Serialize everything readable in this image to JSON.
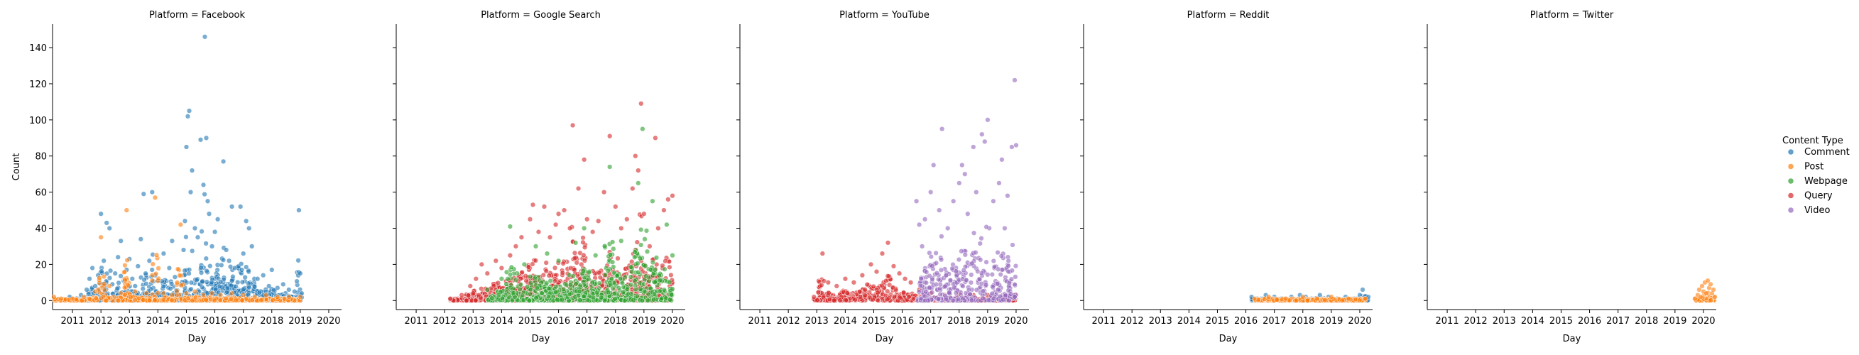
{
  "chart_data": {
    "type": "scatter",
    "facet_variable": "Platform",
    "facets": [
      {
        "title": "Platform = Facebook"
      },
      {
        "title": "Platform = Google Search"
      },
      {
        "title": "Platform = YouTube"
      },
      {
        "title": "Platform = Reddit"
      },
      {
        "title": "Platform = Twitter"
      }
    ],
    "xlabel": "Day",
    "ylabel": "Count",
    "xlim": [
      2010.3,
      2020.45
    ],
    "ylim": [
      -5,
      153
    ],
    "x_ticks": [
      2011,
      2012,
      2013,
      2014,
      2015,
      2016,
      2017,
      2018,
      2019,
      2020
    ],
    "y_ticks": [
      0,
      20,
      40,
      60,
      80,
      100,
      120,
      140
    ],
    "legend": {
      "title": "Content Type",
      "placement": "right",
      "entries": [
        "Comment",
        "Post",
        "Webpage",
        "Query",
        "Video"
      ]
    },
    "colors": {
      "Comment": "#1f77b4",
      "Post": "#ff7f0e",
      "Webpage": "#2ca02c",
      "Query": "#d62728",
      "Video": "#9467bd"
    },
    "series": [
      {
        "facet": "Platform = Facebook",
        "name": "Comment",
        "points": [
          [
            2010.9,
            2
          ],
          [
            2011.3,
            3
          ],
          [
            2011.5,
            6
          ],
          [
            2011.6,
            12
          ],
          [
            2011.7,
            18
          ],
          [
            2011.8,
            8
          ],
          [
            2011.9,
            14
          ],
          [
            2012.0,
            48
          ],
          [
            2012.1,
            22
          ],
          [
            2012.2,
            43
          ],
          [
            2012.3,
            40
          ],
          [
            2012.4,
            9
          ],
          [
            2012.5,
            15
          ],
          [
            2012.6,
            24
          ],
          [
            2012.7,
            33
          ],
          [
            2012.8,
            11
          ],
          [
            2012.9,
            17
          ],
          [
            2013.0,
            23
          ],
          [
            2013.1,
            12
          ],
          [
            2013.2,
            8
          ],
          [
            2013.3,
            19
          ],
          [
            2013.4,
            34
          ],
          [
            2013.5,
            59
          ],
          [
            2013.7,
            22
          ],
          [
            2013.8,
            60
          ],
          [
            2013.9,
            14
          ],
          [
            2014.0,
            11
          ],
          [
            2014.2,
            26
          ],
          [
            2014.4,
            18
          ],
          [
            2014.5,
            33
          ],
          [
            2014.6,
            13
          ],
          [
            2014.8,
            9
          ],
          [
            2014.9,
            28
          ],
          [
            2014.95,
            44
          ],
          [
            2015.0,
            85
          ],
          [
            2015.05,
            102
          ],
          [
            2015.1,
            105
          ],
          [
            2015.15,
            60
          ],
          [
            2015.2,
            72
          ],
          [
            2015.3,
            40
          ],
          [
            2015.4,
            35
          ],
          [
            2015.5,
            89
          ],
          [
            2015.6,
            64
          ],
          [
            2015.65,
            146
          ],
          [
            2015.7,
            90
          ],
          [
            2015.75,
            55
          ],
          [
            2015.8,
            48
          ],
          [
            2015.9,
            30
          ],
          [
            2016.0,
            38
          ],
          [
            2016.1,
            45
          ],
          [
            2016.3,
            77
          ],
          [
            2016.4,
            28
          ],
          [
            2016.5,
            22
          ],
          [
            2016.6,
            52
          ],
          [
            2016.7,
            18
          ],
          [
            2016.9,
            52
          ],
          [
            2017.0,
            26
          ],
          [
            2017.1,
            44
          ],
          [
            2017.2,
            40
          ],
          [
            2017.3,
            30
          ],
          [
            2017.5,
            12
          ],
          [
            2017.7,
            14
          ],
          [
            2017.9,
            8
          ],
          [
            2018.0,
            17
          ],
          [
            2018.2,
            7
          ],
          [
            2018.4,
            9
          ],
          [
            2018.6,
            6
          ],
          [
            2018.8,
            5
          ],
          [
            2018.95,
            50
          ],
          [
            2019.0,
            15
          ],
          [
            2019.05,
            4
          ]
        ]
      },
      {
        "facet": "Platform = Facebook",
        "name": "Post",
        "points": [
          [
            2010.35,
            2
          ],
          [
            2010.6,
            1
          ],
          [
            2011.0,
            1
          ],
          [
            2011.4,
            2
          ],
          [
            2011.8,
            5
          ],
          [
            2012.0,
            35
          ],
          [
            2012.3,
            8
          ],
          [
            2012.7,
            4
          ],
          [
            2012.9,
            50
          ],
          [
            2013.2,
            5
          ],
          [
            2013.6,
            4
          ],
          [
            2013.9,
            57
          ],
          [
            2014.2,
            4
          ],
          [
            2014.5,
            3
          ],
          [
            2014.8,
            42
          ],
          [
            2015.0,
            4
          ],
          [
            2015.3,
            5
          ],
          [
            2015.6,
            3
          ],
          [
            2015.9,
            4
          ],
          [
            2016.2,
            3
          ],
          [
            2016.6,
            4
          ],
          [
            2017.0,
            3
          ],
          [
            2017.4,
            2
          ],
          [
            2017.8,
            3
          ],
          [
            2018.2,
            2
          ],
          [
            2018.6,
            2
          ],
          [
            2019.0,
            2
          ]
        ]
      },
      {
        "facet": "Platform = Google Search",
        "name": "Query",
        "points": [
          [
            2012.2,
            1
          ],
          [
            2012.6,
            3
          ],
          [
            2012.9,
            8
          ],
          [
            2013.1,
            12
          ],
          [
            2013.3,
            20
          ],
          [
            2013.5,
            15
          ],
          [
            2013.8,
            22
          ],
          [
            2014.0,
            18
          ],
          [
            2014.3,
            25
          ],
          [
            2014.5,
            30
          ],
          [
            2014.7,
            35
          ],
          [
            2015.0,
            45
          ],
          [
            2015.1,
            53
          ],
          [
            2015.3,
            38
          ],
          [
            2015.5,
            52
          ],
          [
            2015.7,
            35
          ],
          [
            2015.9,
            42
          ],
          [
            2016.0,
            48
          ],
          [
            2016.2,
            50
          ],
          [
            2016.4,
            40
          ],
          [
            2016.5,
            97
          ],
          [
            2016.7,
            62
          ],
          [
            2016.9,
            78
          ],
          [
            2017.0,
            45
          ],
          [
            2017.2,
            38
          ],
          [
            2017.4,
            44
          ],
          [
            2017.6,
            60
          ],
          [
            2017.8,
            91
          ],
          [
            2018.0,
            52
          ],
          [
            2018.2,
            40
          ],
          [
            2018.4,
            45
          ],
          [
            2018.6,
            62
          ],
          [
            2018.7,
            80
          ],
          [
            2018.8,
            72
          ],
          [
            2018.9,
            109
          ],
          [
            2019.0,
            48
          ],
          [
            2019.2,
            30
          ],
          [
            2019.4,
            90
          ],
          [
            2019.5,
            40
          ],
          [
            2019.7,
            50
          ],
          [
            2019.85,
            56
          ],
          [
            2020.0,
            58
          ]
        ]
      },
      {
        "facet": "Platform = Google Search",
        "name": "Webpage",
        "points": [
          [
            2013.5,
            6
          ],
          [
            2014.0,
            12
          ],
          [
            2014.3,
            41
          ],
          [
            2014.8,
            20
          ],
          [
            2015.2,
            30
          ],
          [
            2015.6,
            26
          ],
          [
            2016.0,
            22
          ],
          [
            2016.6,
            32
          ],
          [
            2016.9,
            40
          ],
          [
            2017.3,
            25
          ],
          [
            2017.8,
            74
          ],
          [
            2018.2,
            33
          ],
          [
            2018.8,
            65
          ],
          [
            2018.95,
            95
          ],
          [
            2019.3,
            55
          ],
          [
            2019.8,
            42
          ],
          [
            2020.0,
            25
          ]
        ]
      },
      {
        "facet": "Platform = YouTube",
        "name": "Query",
        "points": [
          [
            2012.9,
            2
          ],
          [
            2013.2,
            26
          ],
          [
            2013.4,
            10
          ],
          [
            2013.7,
            8
          ],
          [
            2014.0,
            12
          ],
          [
            2014.3,
            10
          ],
          [
            2014.6,
            14
          ],
          [
            2014.9,
            20
          ],
          [
            2015.1,
            16
          ],
          [
            2015.3,
            26
          ],
          [
            2015.5,
            32
          ],
          [
            2015.7,
            19
          ],
          [
            2015.9,
            15
          ],
          [
            2016.1,
            12
          ],
          [
            2016.3,
            10
          ],
          [
            2016.6,
            6
          ],
          [
            2017.0,
            4
          ],
          [
            2017.5,
            3
          ],
          [
            2018.0,
            4
          ],
          [
            2018.5,
            3
          ],
          [
            2019.0,
            3
          ],
          [
            2019.5,
            2
          ],
          [
            2020.0,
            3
          ]
        ]
      },
      {
        "facet": "Platform = YouTube",
        "name": "Video",
        "points": [
          [
            2016.5,
            55
          ],
          [
            2016.6,
            42
          ],
          [
            2016.7,
            30
          ],
          [
            2016.8,
            45
          ],
          [
            2017.0,
            60
          ],
          [
            2017.1,
            75
          ],
          [
            2017.3,
            50
          ],
          [
            2017.4,
            95
          ],
          [
            2017.6,
            40
          ],
          [
            2017.8,
            55
          ],
          [
            2018.0,
            65
          ],
          [
            2018.1,
            75
          ],
          [
            2018.2,
            70
          ],
          [
            2018.3,
            48
          ],
          [
            2018.5,
            85
          ],
          [
            2018.6,
            60
          ],
          [
            2018.8,
            92
          ],
          [
            2018.9,
            88
          ],
          [
            2019.0,
            100
          ],
          [
            2019.2,
            55
          ],
          [
            2019.4,
            65
          ],
          [
            2019.5,
            78
          ],
          [
            2019.6,
            40
          ],
          [
            2019.7,
            58
          ],
          [
            2019.85,
            85
          ],
          [
            2019.95,
            122
          ],
          [
            2020.0,
            86
          ]
        ]
      },
      {
        "facet": "Platform = Reddit",
        "name": "Comment",
        "points": [
          [
            2016.2,
            2
          ],
          [
            2016.4,
            1
          ],
          [
            2016.7,
            3
          ],
          [
            2017.0,
            2
          ],
          [
            2017.3,
            1
          ],
          [
            2017.6,
            2
          ],
          [
            2017.9,
            3
          ],
          [
            2018.1,
            2
          ],
          [
            2018.3,
            1
          ],
          [
            2018.6,
            3
          ],
          [
            2018.9,
            2
          ],
          [
            2019.2,
            1
          ],
          [
            2019.5,
            2
          ],
          [
            2019.8,
            1
          ],
          [
            2020.0,
            3
          ],
          [
            2020.1,
            6
          ],
          [
            2020.3,
            2
          ]
        ]
      },
      {
        "facet": "Platform = Reddit",
        "name": "Post",
        "points": [
          [
            2016.3,
            1
          ],
          [
            2016.8,
            2
          ],
          [
            2017.4,
            1
          ],
          [
            2018.0,
            2
          ],
          [
            2018.5,
            1
          ],
          [
            2019.0,
            2
          ],
          [
            2019.6,
            1
          ],
          [
            2020.2,
            1
          ]
        ]
      },
      {
        "facet": "Platform = Twitter",
        "name": "Post",
        "points": [
          [
            2019.7,
            1
          ],
          [
            2019.8,
            3
          ],
          [
            2019.85,
            6
          ],
          [
            2019.9,
            2
          ],
          [
            2019.95,
            8
          ],
          [
            2020.0,
            5
          ],
          [
            2020.05,
            10
          ],
          [
            2020.1,
            4
          ],
          [
            2020.15,
            11
          ],
          [
            2020.2,
            7
          ],
          [
            2020.25,
            9
          ],
          [
            2020.3,
            4
          ],
          [
            2020.35,
            6
          ],
          [
            2020.4,
            2
          ]
        ]
      }
    ]
  }
}
